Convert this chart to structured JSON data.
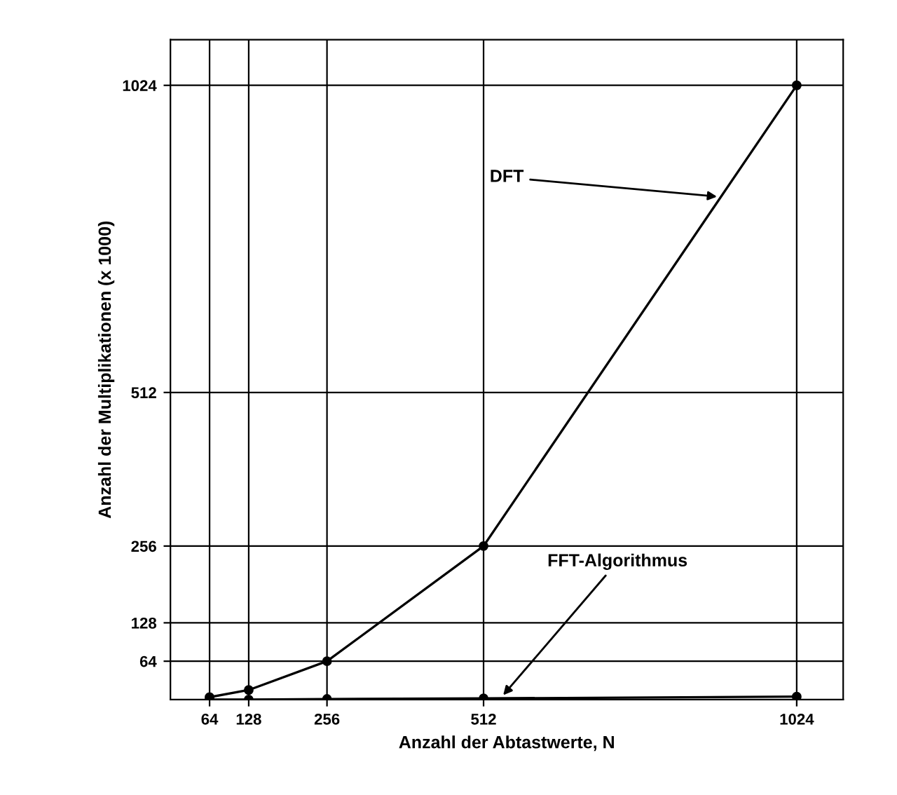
{
  "chart_data": {
    "type": "line",
    "xlabel": "Anzahl der Abtastwerte, N",
    "ylabel": "Anzahl der Multiplikationen (x 1000)",
    "x": [
      64,
      128,
      256,
      512,
      1024
    ],
    "series": [
      {
        "color": "#000000",
        "values": [
          4,
          16,
          64,
          256,
          1024
        ]
      },
      {
        "color": "#000000",
        "values": [
          0,
          0,
          1,
          2,
          5
        ]
      }
    ],
    "xlim": [
      0,
      1100
    ],
    "ylim": [
      0,
      1100
    ],
    "xticks": [
      64,
      128,
      256,
      512,
      1024
    ],
    "yticks": [
      64,
      128,
      256,
      512,
      1024
    ],
    "grid": true,
    "marker": "circle",
    "line_style": "solid",
    "annotations": [
      {
        "text": "DFT",
        "x": 900,
        "y": 838
      },
      {
        "text": "FFT-Algorithmus",
        "x": 540,
        "y": 2.5
      }
    ]
  }
}
